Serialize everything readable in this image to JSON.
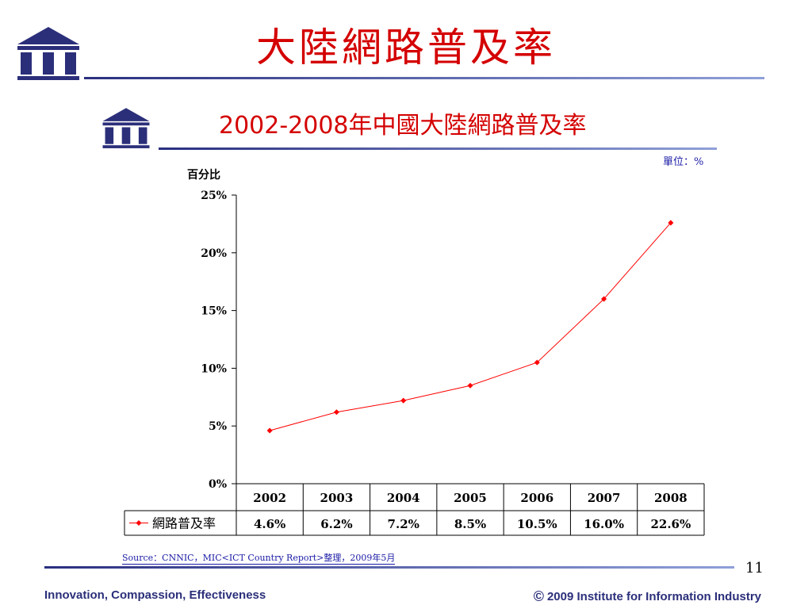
{
  "slide": {
    "title": "大陸網路普及率",
    "page_number": "11",
    "source": "Source：CNNIC，MIC<ICT Country Report>整理，2009年5月",
    "footer_left": "Innovation, Compassion, Effectiveness",
    "footer_copyright_symbol": "©",
    "footer_right": "2009 Institute for Information Industry",
    "brand_color": "#2b2f7a",
    "title_color": "#d40000",
    "rule_gradient_start": "#2a2f80",
    "rule_gradient_end": "#8fa0d8"
  },
  "chart_data": {
    "type": "line",
    "title": "2002-2008年中國大陸網路普及率",
    "unit_label": "單位：%",
    "ylabel": "百分比",
    "ylim": [
      0,
      25
    ],
    "yticks": [
      "0%",
      "5%",
      "10%",
      "15%",
      "20%",
      "25%"
    ],
    "categories": [
      "2002",
      "2003",
      "2004",
      "2005",
      "2006",
      "2007",
      "2008"
    ],
    "series": [
      {
        "name": "網路普及率",
        "values": [
          4.6,
          6.2,
          7.2,
          8.5,
          10.5,
          16.0,
          22.6
        ],
        "labels": [
          "4.6%",
          "6.2%",
          "7.2%",
          "8.5%",
          "10.5%",
          "16.0%",
          "22.6%"
        ],
        "color": "#ff0000"
      }
    ],
    "grid": false,
    "data_table": true
  }
}
